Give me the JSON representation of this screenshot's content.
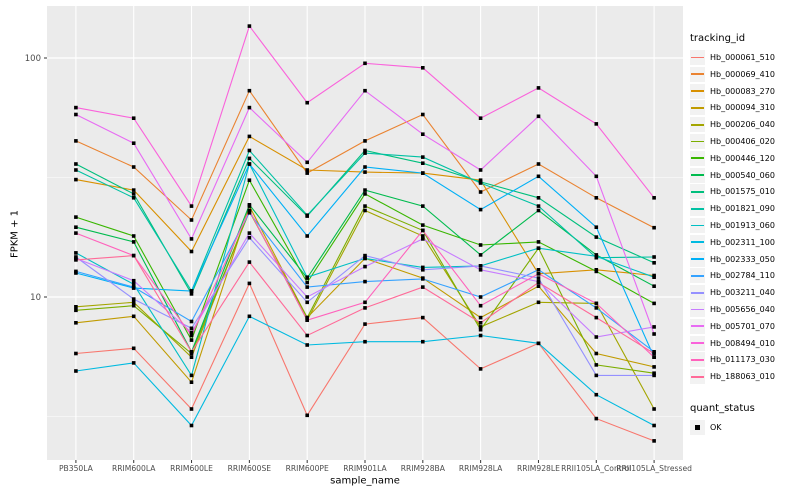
{
  "chart_data": {
    "type": "line",
    "title": "",
    "xlabel": "sample_name",
    "ylabel": "FPKM + 1",
    "y_scale": "log10",
    "y_ticks": [
      "10",
      "100"
    ],
    "y_minor_ticks": [
      3.1623,
      31.623
    ],
    "ylim": [
      2.1,
      160
    ],
    "grid": true,
    "panel_bg": "#EBEBEB",
    "grid_color": "#FFFFFF",
    "axis_text_color": "#4D4D4D",
    "tick_color": "#333333",
    "point_color": "#000000",
    "categories": [
      "PB350LA",
      "RRIM600LA",
      "RRIM600LE",
      "RRIM600SE",
      "RRIM600PE",
      "RRIM901LA",
      "RRIM928BA",
      "RRIM928LA",
      "RRIM928LE",
      "RRII105LA_Control",
      "RRII105LA_Stressed"
    ],
    "legend": {
      "position": "right",
      "color_title": "tracking_id",
      "shape_title": "quant_status",
      "shape_items": [
        {
          "label": "OK"
        }
      ]
    },
    "series": [
      {
        "name": "Hb_000061_510",
        "color": "#F8766D",
        "values": [
          5.8,
          6.1,
          3.4,
          11.4,
          3.2,
          7.7,
          8.2,
          5.0,
          6.4,
          3.1,
          2.5
        ]
      },
      {
        "name": "Hb_000069_410",
        "color": "#EA8331",
        "values": [
          45,
          35,
          21,
          73,
          33,
          45,
          58,
          27.5,
          36,
          26,
          19.5
        ]
      },
      {
        "name": "Hb_000083_270",
        "color": "#D89000",
        "values": [
          31,
          28,
          15.5,
          47,
          34,
          33.3,
          33,
          30.8,
          12.5,
          13,
          12.3
        ]
      },
      {
        "name": "Hb_000094_310",
        "color": "#C09B00",
        "values": [
          7.8,
          8.3,
          4.4,
          24,
          8.2,
          14.5,
          12,
          8.2,
          11.1,
          5.8,
          5.1
        ]
      },
      {
        "name": "Hb_000206_040",
        "color": "#A3A500",
        "values": [
          9.1,
          9.5,
          5.6,
          23,
          8.0,
          23,
          18,
          7.5,
          9.5,
          9.4,
          3.4
        ]
      },
      {
        "name": "Hb_000406_020",
        "color": "#7CAE00",
        "values": [
          8.8,
          9.2,
          5.8,
          22.8,
          8.2,
          24,
          19,
          7.3,
          16,
          5.2,
          4.8
        ]
      },
      {
        "name": "Hb_000446_120",
        "color": "#39B600",
        "values": [
          21.6,
          18,
          6.6,
          30.8,
          11.5,
          27,
          20,
          16.5,
          17,
          12.8,
          9.4
        ]
      },
      {
        "name": "Hb_000540_060",
        "color": "#00BB4E",
        "values": [
          19.6,
          17,
          5.9,
          24.3,
          12,
          28,
          24,
          15,
          23,
          15,
          11.1
        ]
      },
      {
        "name": "Hb_001575_010",
        "color": "#00BF7D",
        "values": [
          36,
          27,
          10.3,
          38,
          21.8,
          41,
          36.3,
          30.3,
          26,
          17.8,
          13.9
        ]
      },
      {
        "name": "Hb_001821_090",
        "color": "#00C1A3",
        "values": [
          34,
          26,
          10.6,
          41,
          22,
          40,
          38.5,
          30,
          24,
          14.6,
          14.7
        ]
      },
      {
        "name": "Hb_001913_060",
        "color": "#00BFC4",
        "values": [
          15.3,
          11.3,
          4.7,
          36,
          12.1,
          14.5,
          13.3,
          13.5,
          16,
          14.8,
          12.1
        ]
      },
      {
        "name": "Hb_002311_100",
        "color": "#00BAE0",
        "values": [
          4.9,
          5.3,
          2.9,
          8.3,
          6.3,
          6.5,
          6.5,
          6.9,
          6.4,
          3.9,
          2.9
        ]
      },
      {
        "name": "Hb_002333_050",
        "color": "#00B0F6",
        "values": [
          12.6,
          10.9,
          10.6,
          36,
          18,
          35,
          33,
          23.2,
          32,
          19.6,
          5.6
        ]
      },
      {
        "name": "Hb_002784_110",
        "color": "#35A2FF",
        "values": [
          12.8,
          11,
          7.9,
          22.5,
          11,
          11.6,
          11.9,
          10,
          13,
          9,
          5.9
        ]
      },
      {
        "name": "Hb_003211_040",
        "color": "#9590FF",
        "values": [
          14.7,
          9.8,
          7.4,
          17.7,
          9.5,
          14.9,
          13,
          13.5,
          12,
          4.7,
          4.7
        ]
      },
      {
        "name": "Hb_005656_040",
        "color": "#C77CFF",
        "values": [
          14.5,
          11.7,
          7.1,
          18.5,
          10,
          13.4,
          17.5,
          13,
          11.6,
          6.8,
          7.5
        ]
      },
      {
        "name": "Hb_005701_070",
        "color": "#E76BF3",
        "values": [
          58,
          44,
          17.5,
          62,
          36.6,
          73,
          48,
          34,
          57,
          32,
          7.0
        ]
      },
      {
        "name": "Hb_008494_010",
        "color": "#FA62DB",
        "values": [
          62,
          56,
          24,
          136,
          65,
          95,
          91,
          56,
          75,
          53,
          26
        ]
      },
      {
        "name": "Hb_011173_030",
        "color": "#FF62BC",
        "values": [
          18.5,
          14.9,
          6.9,
          23,
          8,
          9.5,
          19,
          9.2,
          12.5,
          9.4,
          5.6
        ]
      },
      {
        "name": "Hb_188063_010",
        "color": "#FF6A98",
        "values": [
          14.3,
          14.9,
          5.9,
          14,
          6.9,
          9,
          11,
          7.8,
          11.5,
          8.2,
          5.8
        ]
      }
    ]
  }
}
